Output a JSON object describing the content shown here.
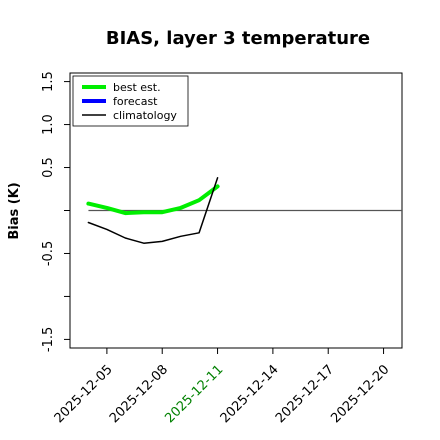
{
  "chart_data": {
    "type": "line",
    "title": "BIAS, layer 3 temperature",
    "xlabel": "",
    "ylabel": "Bias (K)",
    "xlim": [
      "2025-12-03",
      "2025-12-21"
    ],
    "ylim": [
      -1.6,
      1.6
    ],
    "yticks": [
      {
        "value": -1.5,
        "label": "-1.5"
      },
      {
        "value": -0.5,
        "label": "-0.5"
      },
      {
        "value": 0.5,
        "label": "0.5"
      },
      {
        "value": 1.0,
        "label": "1.0"
      },
      {
        "value": 1.5,
        "label": "1.5"
      }
    ],
    "yticks_minor": [
      -1.0,
      0.0
    ],
    "xticks": [
      {
        "value": "2025-12-05",
        "label": "2025-12-05",
        "color": "#000000"
      },
      {
        "value": "2025-12-08",
        "label": "2025-12-08",
        "color": "#000000"
      },
      {
        "value": "2025-12-11",
        "label": "2025-12-11",
        "color": "#008000"
      },
      {
        "value": "2025-12-14",
        "label": "2025-12-14",
        "color": "#000000"
      },
      {
        "value": "2025-12-17",
        "label": "2025-12-17",
        "color": "#000000"
      },
      {
        "value": "2025-12-20",
        "label": "2025-12-20",
        "color": "#000000"
      }
    ],
    "reference_line": {
      "y": 0,
      "x_from": "2025-12-04",
      "x_to": "2025-12-21",
      "color": "#555555"
    },
    "series": [
      {
        "name": "best est.",
        "color": "#00ee00",
        "x": [
          "2025-12-04",
          "2025-12-05",
          "2025-12-06",
          "2025-12-07",
          "2025-12-08",
          "2025-12-09",
          "2025-12-10",
          "2025-12-11"
        ],
        "y": [
          0.08,
          0.03,
          -0.03,
          -0.02,
          -0.02,
          0.03,
          0.12,
          0.28
        ]
      },
      {
        "name": "forecast",
        "color": "#0000ff",
        "x": [],
        "y": []
      },
      {
        "name": "climatology",
        "color": "#000000",
        "x": [
          "2025-12-04",
          "2025-12-05",
          "2025-12-06",
          "2025-12-07",
          "2025-12-08",
          "2025-12-09",
          "2025-12-10",
          "2025-12-11"
        ],
        "y": [
          -0.14,
          -0.22,
          -0.32,
          -0.38,
          -0.36,
          -0.3,
          -0.26,
          0.38
        ]
      }
    ],
    "legend_position": "top-left",
    "grid": false
  }
}
